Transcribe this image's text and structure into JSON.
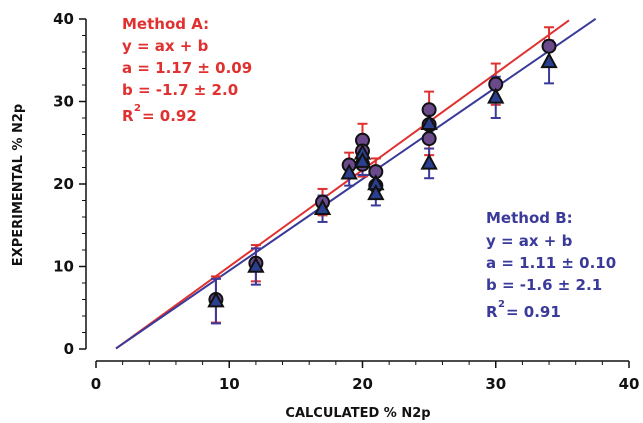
{
  "chart_data": {
    "type": "scatter",
    "title": "",
    "xlabel": "CALCULATED % N2p",
    "ylabel": "EXPERIMENTAL % N2p",
    "xlim": [
      0,
      40
    ],
    "ylim": [
      0,
      40
    ],
    "xticks": [
      "0",
      "10",
      "20",
      "30",
      "40"
    ],
    "yticks": [
      "0",
      "10",
      "20",
      "30",
      "40"
    ],
    "grid": false,
    "legend": "none",
    "colors": {
      "method_a": "#e0302f",
      "method_b": "#3a3a9a",
      "marker_a": "#6b4a8c",
      "marker_b": "#2a3f8f"
    },
    "series": [
      {
        "marker": "circle",
        "color": "#e0302f",
        "points": [
          {
            "x": 9,
            "y": 6.0,
            "err": 2.8
          },
          {
            "x": 12,
            "y": 10.4,
            "err": 2.2
          },
          {
            "x": 17,
            "y": 17.8,
            "err": 1.6
          },
          {
            "x": 19,
            "y": 22.3,
            "err": 1.5
          },
          {
            "x": 20,
            "y": 25.3,
            "err": 2.0
          },
          {
            "x": 20,
            "y": 24.0,
            "err": 1.8
          },
          {
            "x": 20,
            "y": 22.4,
            "err": 1.5
          },
          {
            "x": 21,
            "y": 21.5,
            "err": 1.6
          },
          {
            "x": 21,
            "y": 19.8,
            "err": 1.6
          },
          {
            "x": 25,
            "y": 29.0,
            "err": 2.2
          },
          {
            "x": 25,
            "y": 27.2,
            "err": 2.2
          },
          {
            "x": 25,
            "y": 25.5,
            "err": 2.0
          },
          {
            "x": 30,
            "y": 32.1,
            "err": 2.5
          },
          {
            "x": 34,
            "y": 36.7,
            "err": 2.3
          }
        ],
        "fit": {
          "a": 1.17,
          "b": -1.7,
          "x_range": [
            1.5,
            35.5
          ]
        }
      },
      {
        "marker": "triangle",
        "color": "#3a3a9a",
        "points": [
          {
            "x": 9,
            "y": 5.8,
            "err": 2.7
          },
          {
            "x": 12,
            "y": 10.0,
            "err": 2.2
          },
          {
            "x": 17,
            "y": 17.0,
            "err": 1.6
          },
          {
            "x": 19,
            "y": 21.3,
            "err": 1.5
          },
          {
            "x": 20,
            "y": 23.7,
            "err": 1.8
          },
          {
            "x": 20,
            "y": 22.7,
            "err": 1.6
          },
          {
            "x": 21,
            "y": 20.0,
            "err": 1.5
          },
          {
            "x": 21,
            "y": 18.8,
            "err": 1.4
          },
          {
            "x": 25,
            "y": 27.3,
            "err": 2.3
          },
          {
            "x": 25,
            "y": 22.5,
            "err": 1.8
          },
          {
            "x": 30,
            "y": 30.5,
            "err": 2.5
          },
          {
            "x": 34,
            "y": 34.8,
            "err": 2.6
          }
        ],
        "fit": {
          "a": 1.11,
          "b": -1.6,
          "x_range": [
            1.5,
            37.5
          ]
        }
      }
    ],
    "annotations": {
      "method_a": {
        "title": "Method A:",
        "eq": "y  = ax + b",
        "a": "a  = 1.17 ± 0.09",
        "b": "b  = -1.7 ± 2.0",
        "r_base": "R",
        "r_sup": "2",
        "r_val": " = 0.92"
      },
      "method_b": {
        "title": "Method B:",
        "eq": "y  = ax + b",
        "a": "a  = 1.11 ± 0.10",
        "b": "b  = -1.6 ± 2.1",
        "r_base": "R",
        "r_sup": "2",
        "r_val": " = 0.91"
      }
    }
  }
}
